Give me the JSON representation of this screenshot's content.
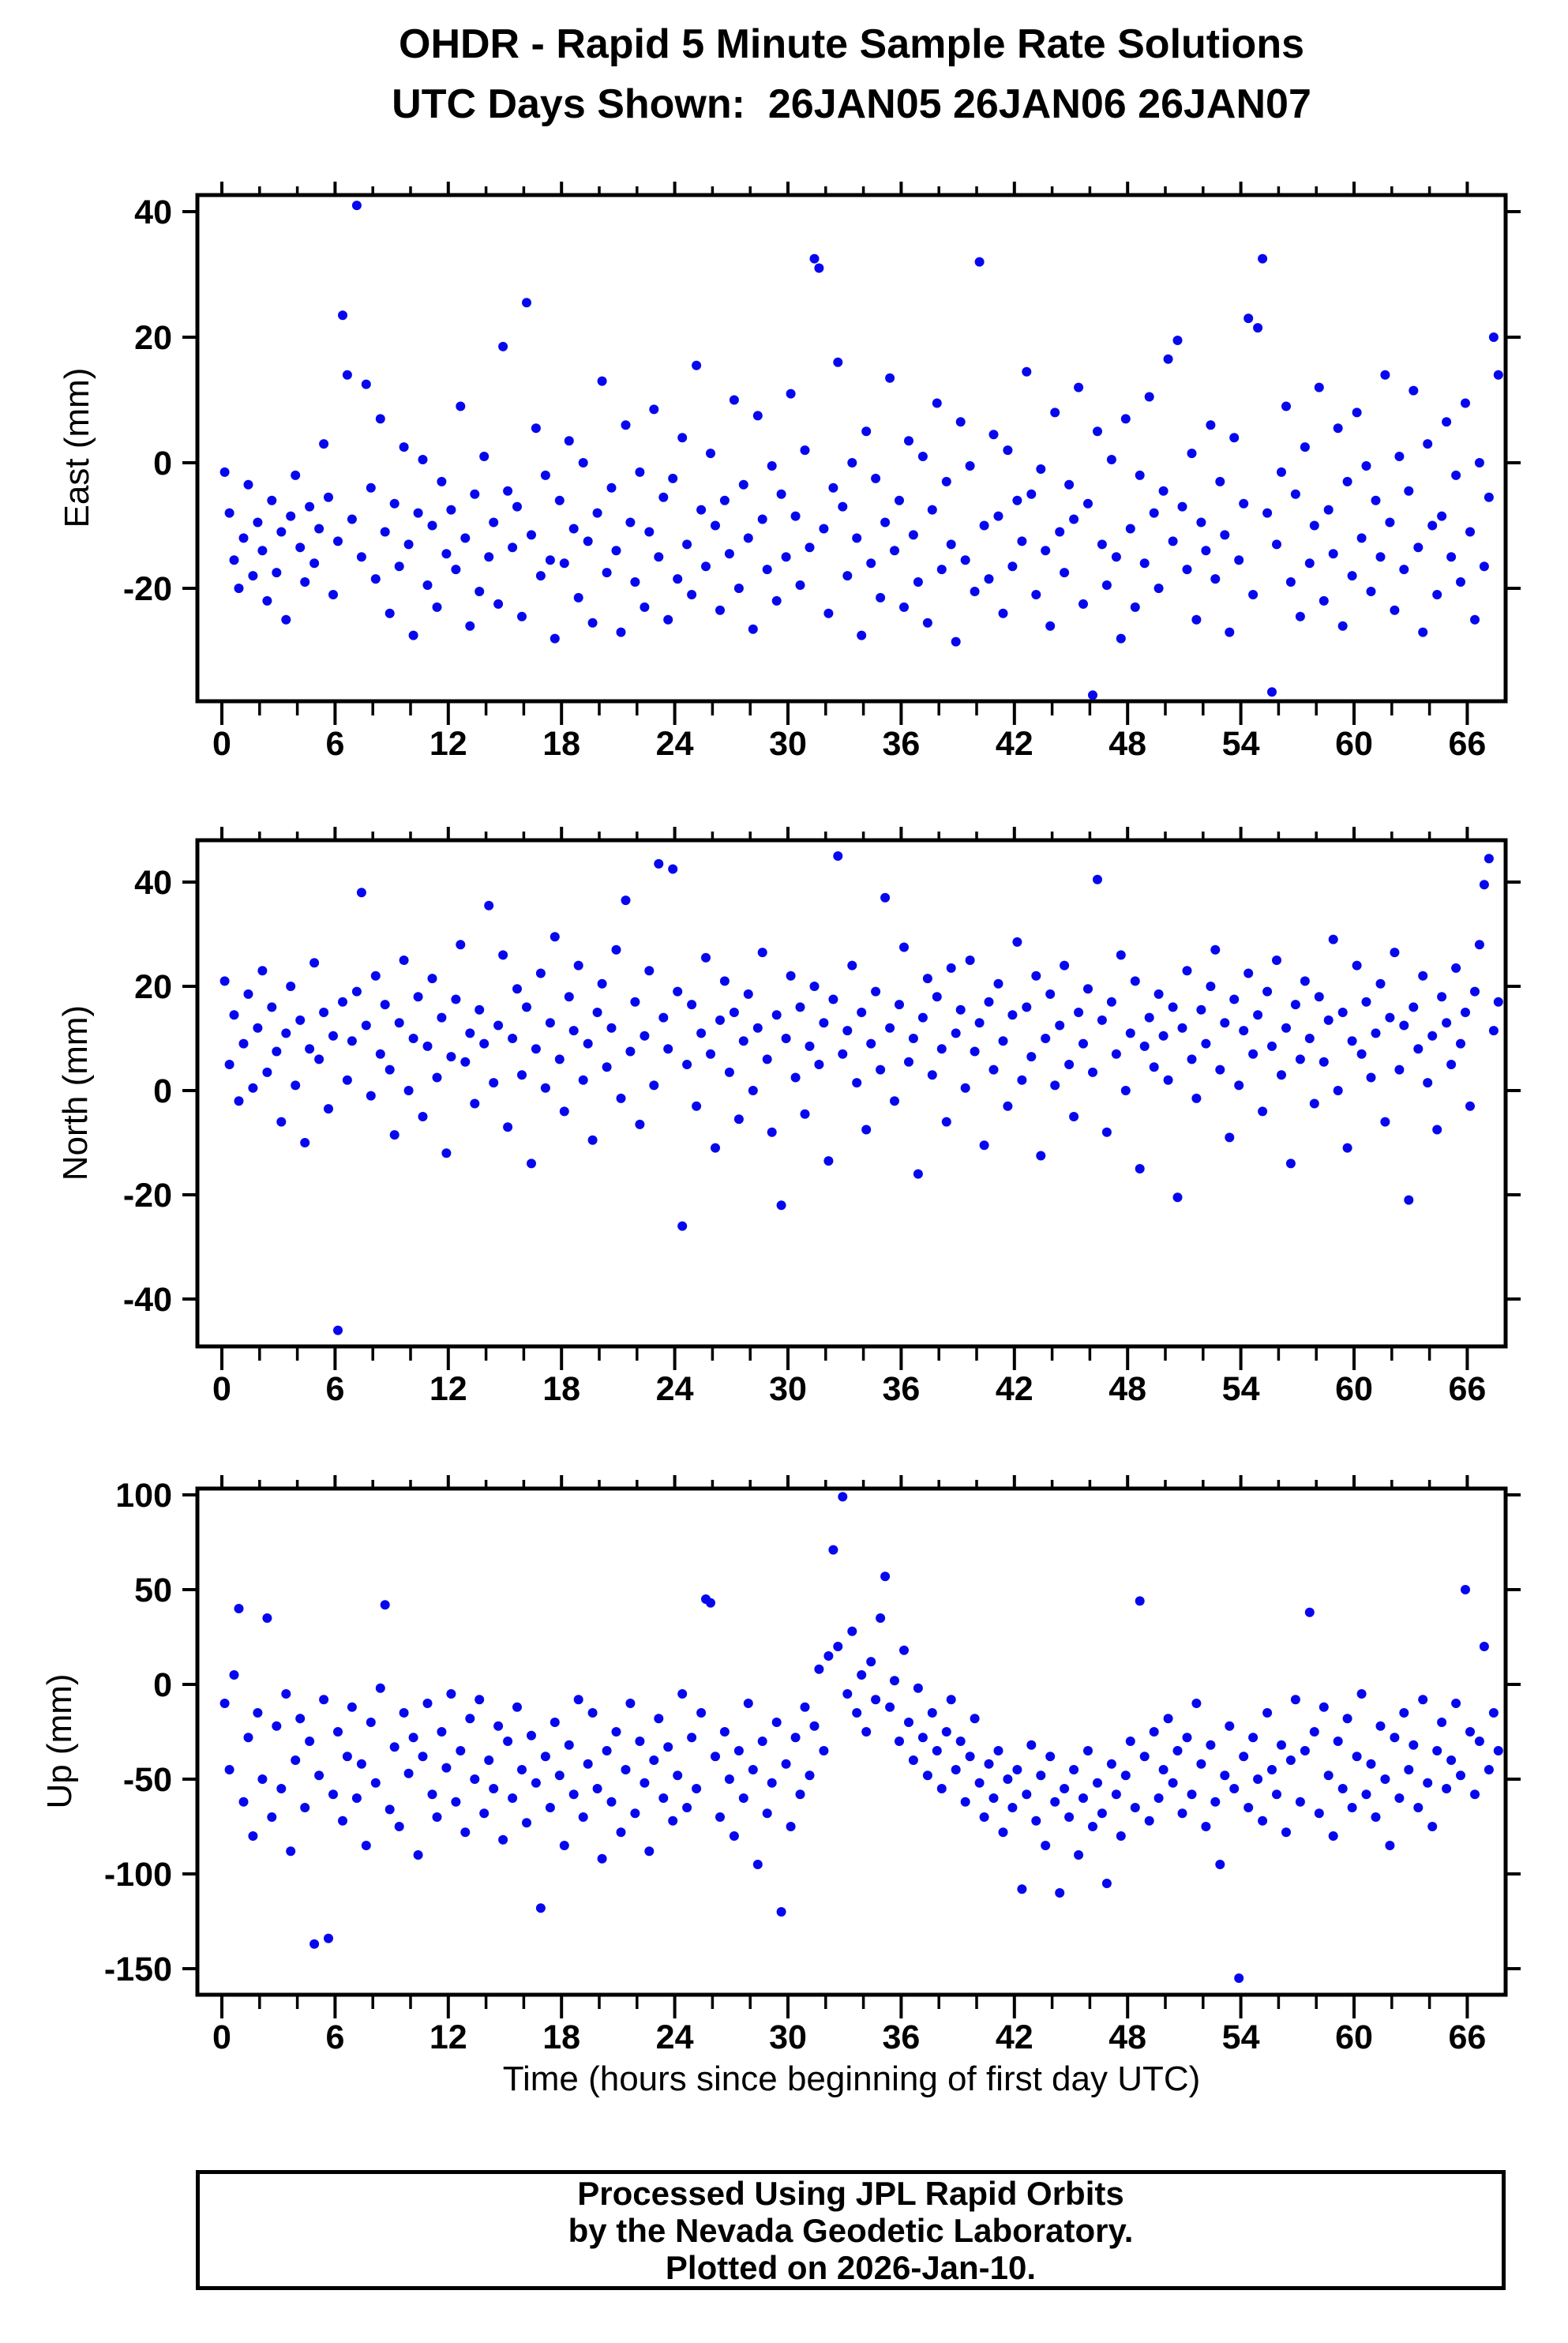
{
  "title": "OHDR - Rapid 5 Minute Sample Rate Solutions",
  "subtitle": "UTC Days Shown:  26JAN05 26JAN06 26JAN07",
  "point_color": "#0707ee",
  "frame_color": "#000000",
  "x_axis": {
    "title": "Time (hours since beginning of first day UTC)",
    "ticks": [
      0,
      6,
      12,
      18,
      24,
      30,
      36,
      42,
      48,
      54,
      60,
      66
    ],
    "minor_step": 2,
    "xlim": [
      -1.3,
      68.0
    ]
  },
  "footer": {
    "lines": [
      "Processed Using JPL Rapid Orbits",
      "by the Nevada Geodetic Laboratory.",
      "Plotted on 2026-Jan-10."
    ]
  },
  "chart_data": [
    {
      "type": "scatter",
      "series_name": "East",
      "ylabel": "East (mm)",
      "xlabel": "Time (hours since beginning of first day UTC)",
      "xlim": [
        -1.3,
        68.0
      ],
      "ylim": [
        -38,
        42.6
      ],
      "yticks": [
        -20,
        0,
        20,
        40
      ],
      "x_start": 0.15,
      "x_step": 0.25,
      "y": [
        -1.5,
        -8,
        -15.5,
        -20,
        -12,
        -3.5,
        -18,
        -9.5,
        -14,
        -22,
        -6,
        -17.5,
        -11,
        -25,
        -8.5,
        -2,
        -13.5,
        -19,
        -7,
        -16,
        -10.5,
        3,
        -5.5,
        -21,
        -12.5,
        23.5,
        14,
        -9,
        41,
        -15,
        12.5,
        -4,
        -18.5,
        7,
        -11,
        -24,
        -6.5,
        -16.5,
        2.5,
        -13,
        -27.5,
        -8,
        0.5,
        -19.5,
        -10,
        -23,
        -3,
        -14.5,
        -7.5,
        -17,
        9,
        -12,
        -26,
        -5,
        -20.5,
        1,
        -15,
        -9.5,
        -22.5,
        18.5,
        -4.5,
        -13.5,
        -7,
        -24.5,
        25.5,
        -11.5,
        5.5,
        -18,
        -2,
        -15.5,
        -28,
        -6,
        -16,
        3.5,
        -10.5,
        -21.5,
        0,
        -12.5,
        -25.5,
        -8,
        13,
        -17.5,
        -4,
        -14,
        -27,
        6,
        -9.5,
        -19,
        -1.5,
        -23,
        -11,
        8.5,
        -15,
        -5.5,
        -25,
        -2.5,
        -18.5,
        4,
        -13,
        -21,
        15.5,
        -7.5,
        -16.5,
        1.5,
        -10,
        -23.5,
        -6,
        -14.5,
        10,
        -20,
        -3.5,
        -12,
        -26.5,
        7.5,
        -9,
        -17,
        -0.5,
        -22,
        -5,
        -15,
        11,
        -8.5,
        -19.5,
        2,
        -13.5,
        32.5,
        31,
        -10.5,
        -24,
        -4,
        16,
        -7,
        -18,
        0,
        -12,
        -27.5,
        5,
        -16,
        -2.5,
        -21.5,
        -9.5,
        13.5,
        -14,
        -6,
        -23,
        3.5,
        -11.5,
        -19,
        1,
        -25.5,
        -7.5,
        9.5,
        -17,
        -3,
        -13,
        -28.5,
        6.5,
        -15.5,
        -0.5,
        -20.5,
        32,
        -10,
        -18.5,
        4.5,
        -8.5,
        -24,
        2,
        -16.5,
        -6,
        -12.5,
        14.5,
        -5,
        -21,
        -1,
        -14,
        -26,
        8,
        -11,
        -17.5,
        -3.5,
        -9,
        12,
        -22.5,
        -6.5,
        -37,
        5,
        -13,
        -19.5,
        0.5,
        -15,
        -28,
        7,
        -10.5,
        -23,
        -2,
        -16,
        10.5,
        -8,
        -20,
        -4.5,
        16.5,
        -12.5,
        19.5,
        -7,
        -17,
        1.5,
        -25,
        -9.5,
        -14,
        6,
        -18.5,
        -3,
        -11.5,
        -27,
        4,
        -15.5,
        -6.5,
        23,
        -21,
        21.5,
        32.5,
        -8,
        -36.5,
        -13,
        -1.5,
        9,
        -19,
        -5,
        -24.5,
        2.5,
        -16,
        -10,
        12,
        -22,
        -7.5,
        -14.5,
        5.5,
        -26,
        -3,
        -18,
        8,
        -12,
        -0.5,
        -20.5,
        -6,
        -15,
        14,
        -9.5,
        -23.5,
        1,
        -17,
        -4.5,
        11.5,
        -13.5,
        -27,
        3,
        -10,
        -21,
        -8.5,
        6.5,
        -15,
        -2,
        -19,
        9.5,
        -11,
        -25,
        0,
        -16.5,
        -5.5,
        20,
        14
      ]
    },
    {
      "type": "scatter",
      "series_name": "North",
      "ylabel": "North (mm)",
      "xlabel": "Time (hours since beginning of first day UTC)",
      "xlim": [
        -1.3,
        68.0
      ],
      "ylim": [
        -49.1,
        48.0
      ],
      "yticks": [
        -40,
        -20,
        0,
        20,
        40
      ],
      "x_start": 0.15,
      "x_step": 0.25,
      "y": [
        21,
        5,
        14.5,
        -2,
        9,
        18.5,
        0.5,
        12,
        23,
        3.5,
        16,
        7.5,
        -6,
        11,
        20,
        1,
        13.5,
        -10,
        8,
        24.5,
        6,
        15,
        -3.5,
        10.5,
        -46,
        17,
        2,
        9.5,
        19,
        38,
        12.5,
        -1,
        22,
        7,
        16.5,
        4,
        -8.5,
        13,
        25,
        0,
        10,
        18,
        -5,
        8.5,
        21.5,
        2.5,
        14,
        -12,
        6.5,
        17.5,
        28,
        5.5,
        11,
        -2.5,
        15.5,
        9,
        35.5,
        1.5,
        12.5,
        26,
        -7,
        10,
        19.5,
        3,
        16,
        -14,
        8,
        22.5,
        0.5,
        13,
        29.5,
        6,
        -4,
        18,
        11.5,
        24,
        2,
        9,
        -9.5,
        15,
        20.5,
        4.5,
        12,
        27,
        -1.5,
        36.5,
        7.5,
        17,
        -6.5,
        10.5,
        23,
        1,
        43.5,
        14,
        8,
        42.5,
        19,
        -26,
        5,
        16.5,
        -3,
        11,
        25.5,
        7,
        -11,
        13.5,
        21,
        3.5,
        15,
        -5.5,
        9.5,
        18.5,
        0,
        12,
        26.5,
        6,
        -8,
        14.5,
        -22,
        10,
        22,
        2.5,
        16,
        -4.5,
        8.5,
        20,
        5,
        13,
        -13.5,
        17.5,
        45,
        7,
        11.5,
        24,
        1.5,
        15,
        -7.5,
        9,
        19,
        4,
        37,
        12,
        -2,
        16.5,
        27.5,
        5.5,
        10,
        -16,
        14,
        21.5,
        3,
        18,
        8,
        -6,
        23.5,
        11,
        15.5,
        0.5,
        25,
        7.5,
        13,
        -10.5,
        17,
        4,
        20.5,
        9.5,
        -3,
        14.5,
        28.5,
        2,
        16,
        6.5,
        22,
        -12.5,
        10,
        18.5,
        1,
        12.5,
        24,
        5,
        -5,
        15,
        9,
        19.5,
        3.5,
        40.5,
        13.5,
        -8,
        17,
        7,
        26,
        0,
        11,
        21,
        -15,
        8.5,
        14,
        4.5,
        18.5,
        10.5,
        2,
        16,
        -20.5,
        12,
        23,
        6,
        -1.5,
        15.5,
        9,
        20,
        27,
        4,
        13,
        -9,
        17.5,
        1,
        11.5,
        22.5,
        7,
        14.5,
        -4,
        19,
        8.5,
        25,
        3,
        12,
        -14,
        16.5,
        6,
        21,
        10,
        -2.5,
        18,
        5.5,
        13.5,
        29,
        0,
        15,
        -11,
        9.5,
        24,
        7,
        17,
        2.5,
        11,
        20.5,
        -6,
        14,
        26.5,
        4,
        12.5,
        -21,
        16,
        8,
        22,
        1.5,
        10.5,
        -7.5,
        18,
        13,
        5,
        23.5,
        9,
        15,
        -3,
        19,
        28,
        39.5,
        44.5,
        11.5,
        17
      ]
    },
    {
      "type": "scatter",
      "series_name": "Up",
      "ylabel": "Up (mm)",
      "xlabel": "Time (hours since beginning of first day UTC)",
      "xlim": [
        -1.3,
        68.0
      ],
      "ylim": [
        -163.8,
        103.3
      ],
      "yticks": [
        -150,
        -100,
        -50,
        0,
        50,
        100
      ],
      "x_start": 0.15,
      "x_step": 0.25,
      "y": [
        -10,
        -45,
        5,
        40,
        -62,
        -28,
        -80,
        -15,
        -50,
        35,
        -70,
        -22,
        -55,
        -5,
        -88,
        -40,
        -18,
        -65,
        -30,
        -137,
        -48,
        -8,
        -134,
        -58,
        -25,
        -72,
        -38,
        -12,
        -60,
        -42,
        -85,
        -20,
        -52,
        -2,
        42,
        -66,
        -33,
        -75,
        -15,
        -47,
        -28,
        -90,
        -38,
        -10,
        -58,
        -70,
        -25,
        -44,
        -5,
        -62,
        -35,
        -78,
        -18,
        -50,
        -8,
        -68,
        -40,
        -55,
        -22,
        -82,
        -30,
        -60,
        -12,
        -45,
        -73,
        -27,
        -52,
        -118,
        -38,
        -65,
        -20,
        -48,
        -85,
        -32,
        -58,
        -8,
        -70,
        -42,
        -15,
        -55,
        -92,
        -35,
        -62,
        -25,
        -78,
        -45,
        -10,
        -68,
        -30,
        -52,
        -88,
        -40,
        -18,
        -60,
        -33,
        -72,
        -48,
        -5,
        -65,
        -28,
        -55,
        -15,
        45,
        43,
        -38,
        -70,
        -25,
        -50,
        -80,
        -35,
        -60,
        -10,
        -45,
        -95,
        -30,
        -68,
        -52,
        -20,
        -120,
        -42,
        -75,
        -28,
        -58,
        -12,
        -48,
        -22,
        8,
        -35,
        15,
        71,
        20,
        99,
        -5,
        28,
        -15,
        5,
        -25,
        12,
        -8,
        35,
        57,
        -12,
        2,
        -30,
        18,
        -20,
        -40,
        -2,
        -28,
        -48,
        -15,
        -35,
        -55,
        -25,
        -8,
        -45,
        -30,
        -62,
        -38,
        -18,
        -52,
        -70,
        -42,
        -60,
        -35,
        -78,
        -50,
        -65,
        -45,
        -108,
        -58,
        -32,
        -72,
        -48,
        -85,
        -38,
        -62,
        -110,
        -55,
        -70,
        -45,
        -90,
        -60,
        -35,
        -75,
        -52,
        -68,
        -105,
        -42,
        -58,
        -80,
        -48,
        -30,
        -65,
        44,
        -38,
        -72,
        -25,
        -60,
        -45,
        -18,
        -52,
        -35,
        -68,
        -28,
        -58,
        -10,
        -42,
        -75,
        -32,
        -62,
        -95,
        -48,
        -22,
        -55,
        -155,
        -38,
        -65,
        -28,
        -50,
        -72,
        -15,
        -45,
        -58,
        -32,
        -78,
        -40,
        -8,
        -62,
        -35,
        38,
        -25,
        -68,
        -12,
        -48,
        -80,
        -30,
        -55,
        -18,
        -65,
        -38,
        -5,
        -58,
        -42,
        -70,
        -22,
        -50,
        -85,
        -28,
        -60,
        -15,
        -45,
        -32,
        -65,
        -8,
        -52,
        -75,
        -35,
        -20,
        -55,
        -40,
        -10,
        -48,
        50,
        -25,
        -58,
        -30,
        20,
        -45,
        -15,
        -35
      ]
    }
  ]
}
